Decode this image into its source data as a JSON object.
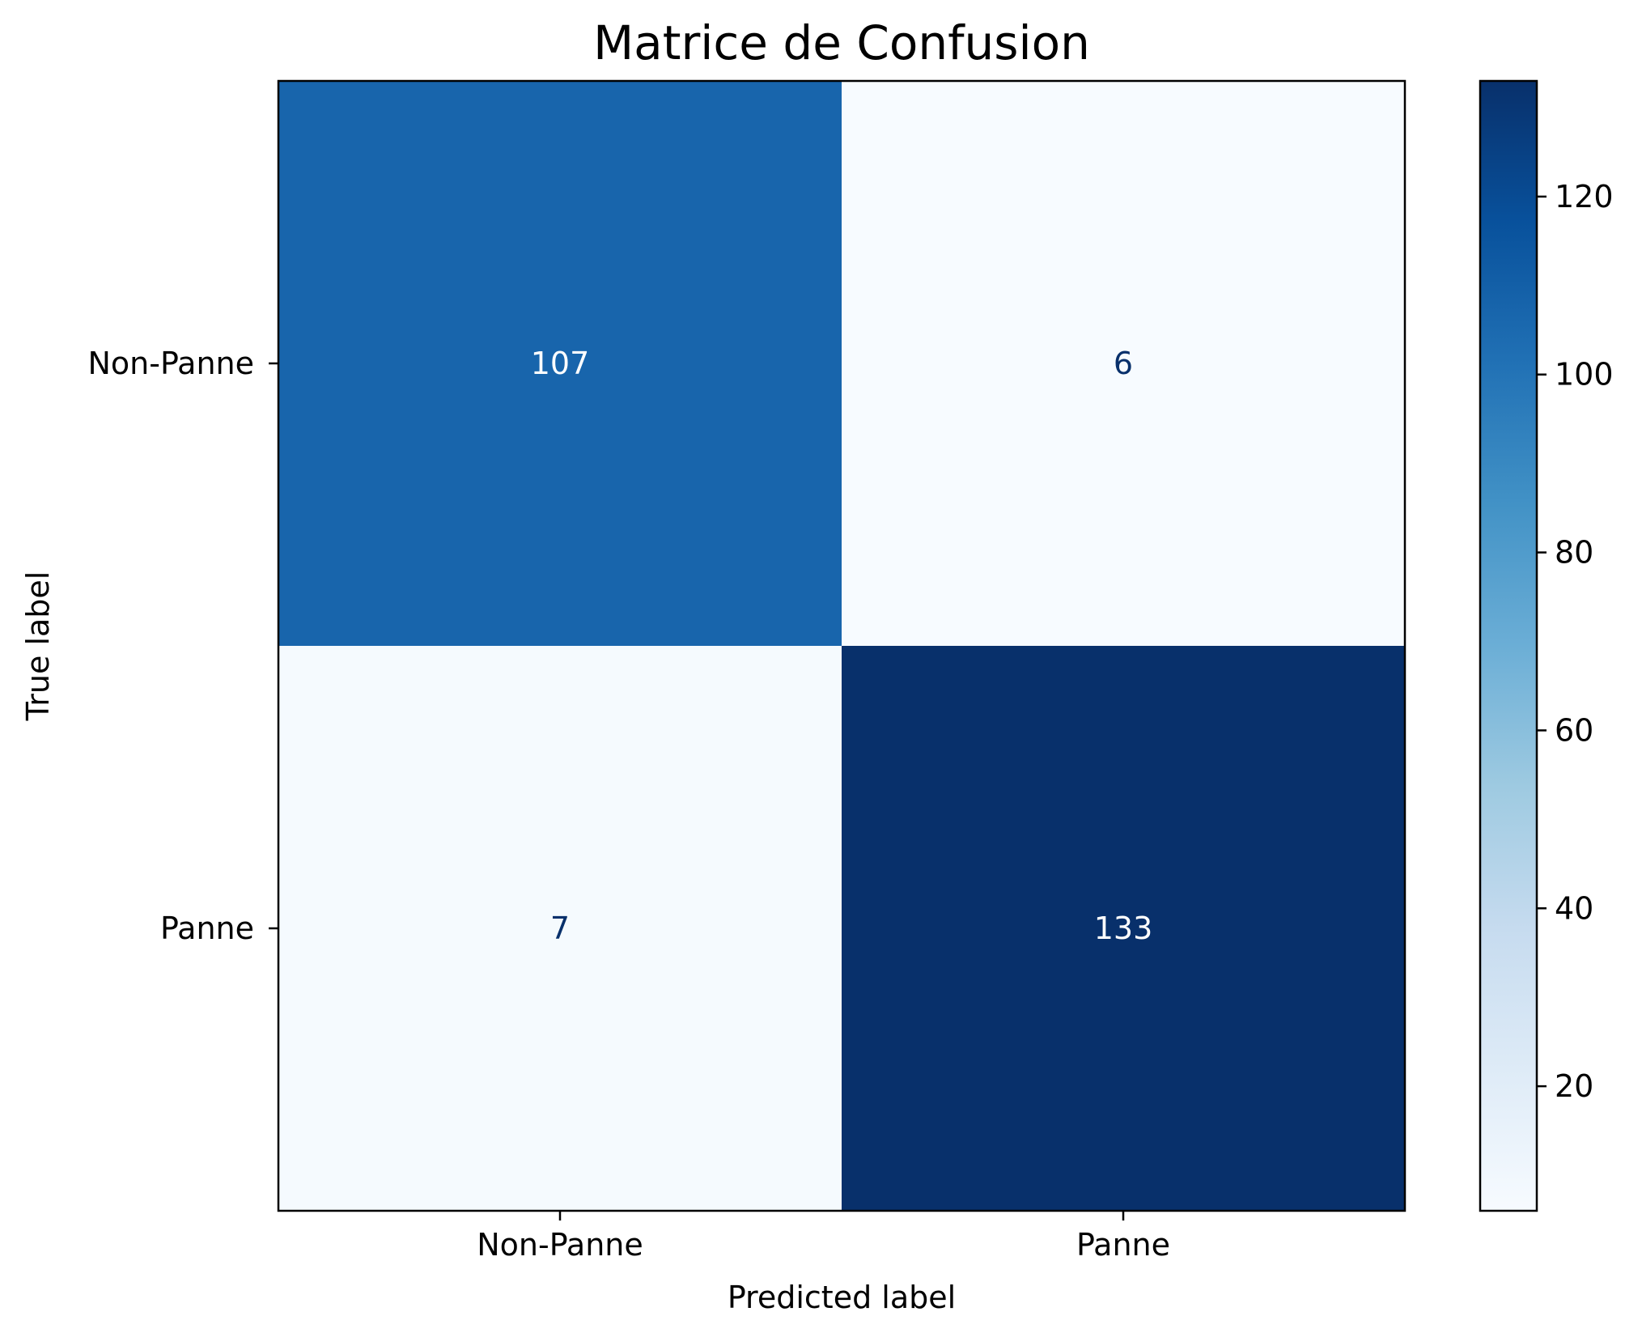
{
  "chart_data": {
    "type": "heatmap",
    "title": "Matrice de Confusion",
    "xlabel": "Predicted label",
    "ylabel": "True label",
    "x_categories": [
      "Non-Panne",
      "Panne"
    ],
    "y_categories": [
      "Non-Panne",
      "Panne"
    ],
    "values": [
      [
        107,
        6
      ],
      [
        7,
        133
      ]
    ],
    "colormap": "Blues",
    "colorbar": {
      "vmin": 6,
      "vmax": 133,
      "ticks": [
        20,
        40,
        60,
        80,
        100,
        120
      ]
    },
    "colors": {
      "low": "#f7fbff",
      "high": "#08306b",
      "text_on_dark": "#ffffff",
      "text_on_light": "#08306b"
    }
  }
}
